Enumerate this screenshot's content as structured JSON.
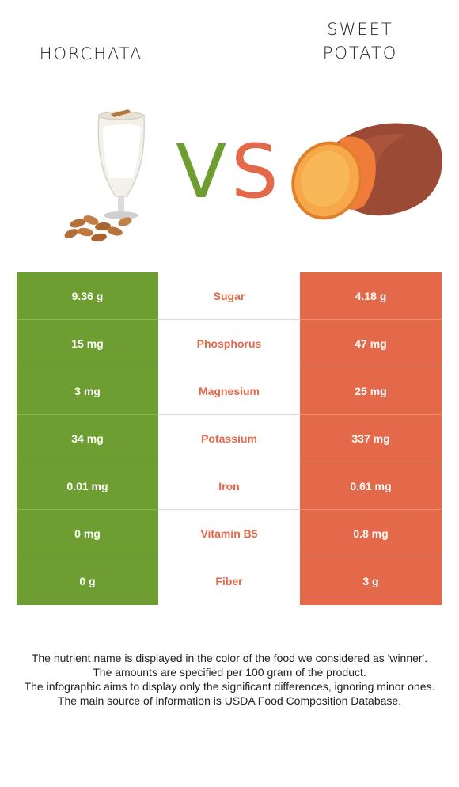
{
  "header": {
    "left_food": "HORCHATA",
    "right_food_line1": "SWEET",
    "right_food_line2": "POTATO",
    "vs_v": "V",
    "vs_s": "S"
  },
  "colors": {
    "left": "#6e9e31",
    "right": "#e4694a"
  },
  "rows": [
    {
      "nutrient": "Sugar",
      "left": "9.36 g",
      "right": "4.18 g",
      "winner": "right"
    },
    {
      "nutrient": "Phosphorus",
      "left": "15 mg",
      "right": "47 mg",
      "winner": "right"
    },
    {
      "nutrient": "Magnesium",
      "left": "3 mg",
      "right": "25 mg",
      "winner": "right"
    },
    {
      "nutrient": "Potassium",
      "left": "34 mg",
      "right": "337 mg",
      "winner": "right"
    },
    {
      "nutrient": "Iron",
      "left": "0.01 mg",
      "right": "0.61 mg",
      "winner": "right"
    },
    {
      "nutrient": "Vitamin B5",
      "left": "0 mg",
      "right": "0.8 mg",
      "winner": "right"
    },
    {
      "nutrient": "Fiber",
      "left": "0 g",
      "right": "3 g",
      "winner": "right"
    }
  ],
  "footnote": [
    "The nutrient name is displayed in the color of the food we considered as 'winner'.",
    "The amounts are specified per 100 gram of the product.",
    "The infographic aims to display only the significant differences, ignoring minor ones.",
    "The main source of information is USDA Food Composition Database."
  ]
}
